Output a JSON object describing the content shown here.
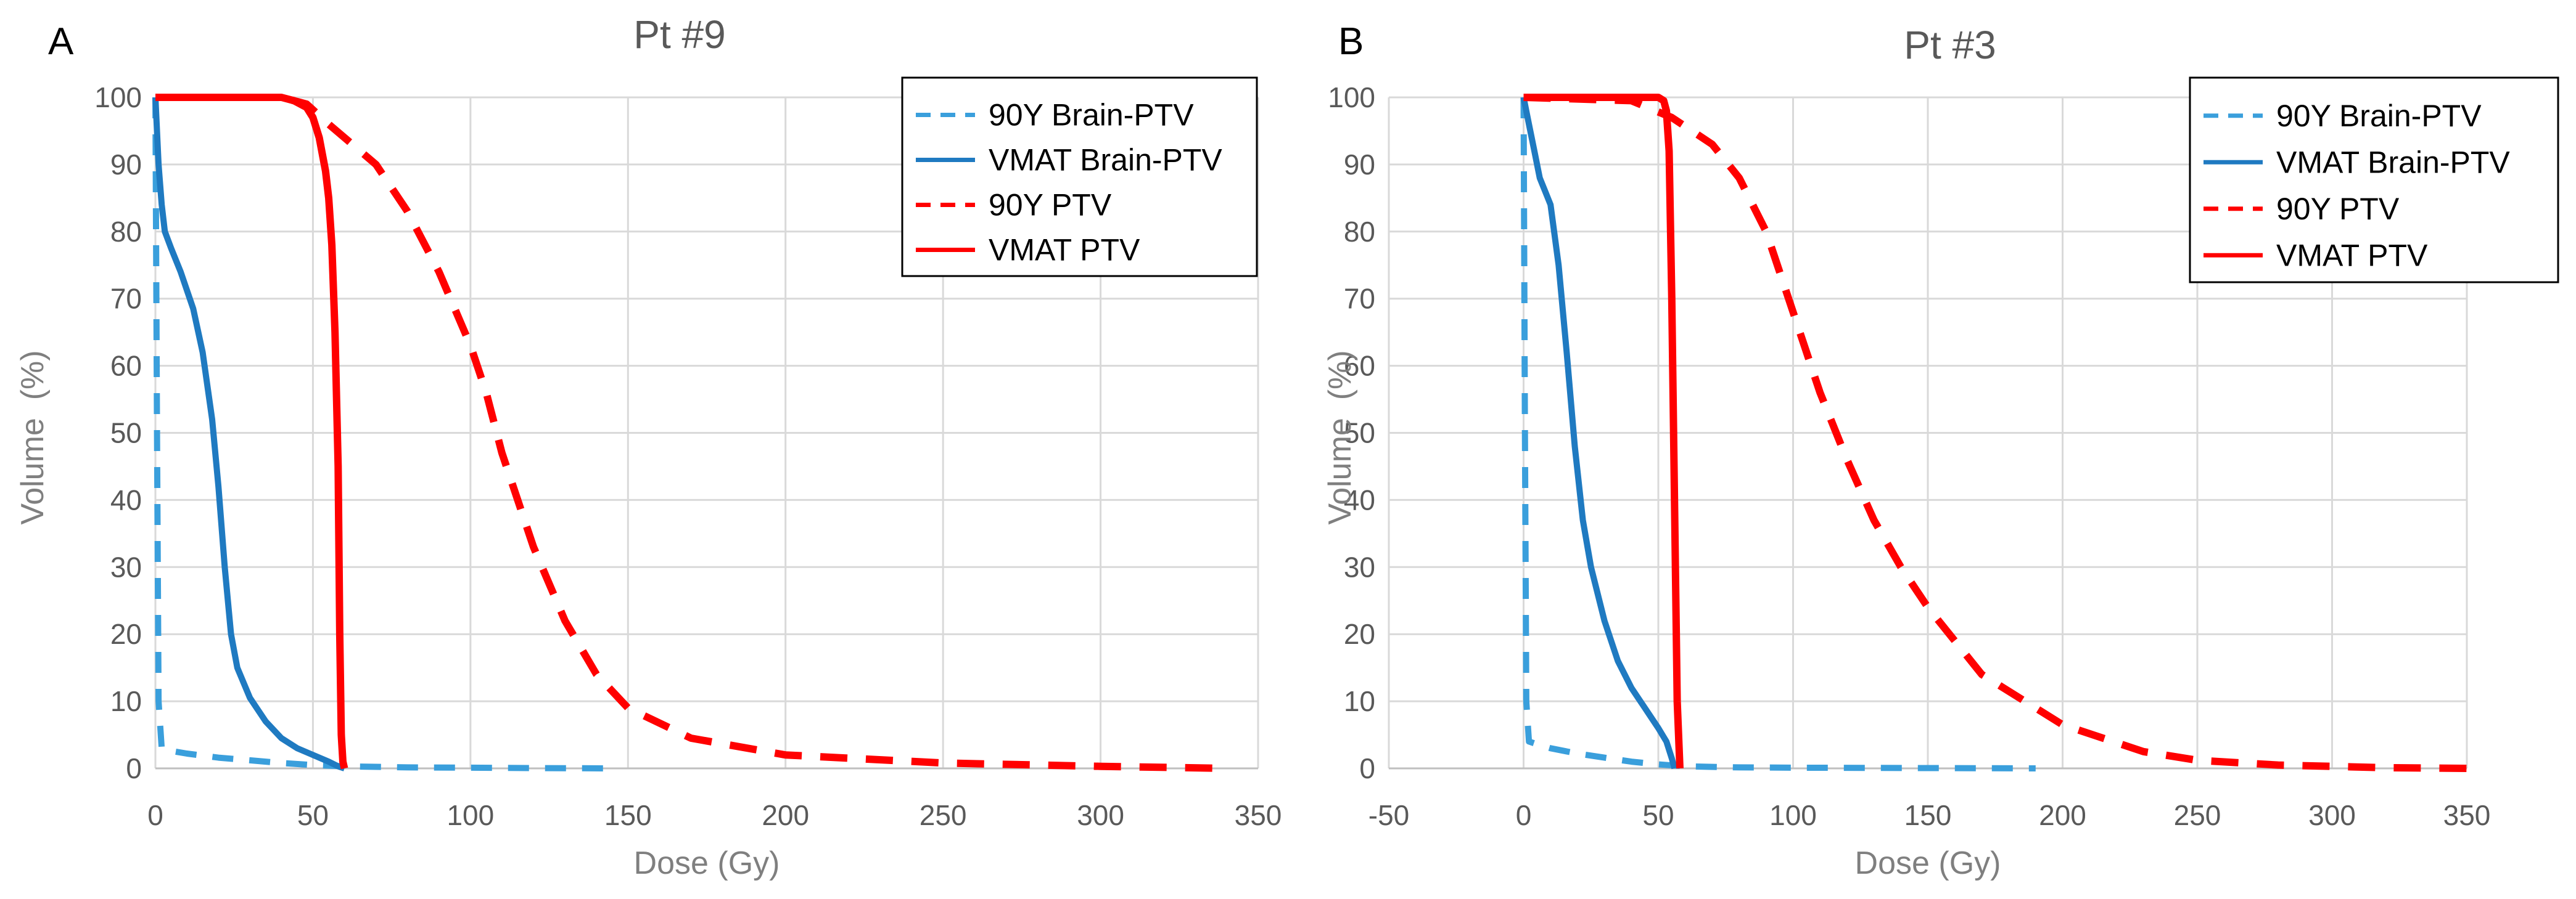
{
  "chart_data": [
    {
      "type": "line",
      "panel_label": "A",
      "title": "Pt #9",
      "xlabel": "Dose (Gy)",
      "ylabel": "Volume  (%)",
      "xlim": [
        0,
        350
      ],
      "ylim": [
        0,
        100
      ],
      "x_ticks": [
        0,
        50,
        100,
        150,
        200,
        250,
        300,
        350
      ],
      "y_ticks": [
        0,
        10,
        20,
        30,
        40,
        50,
        60,
        70,
        80,
        90,
        100
      ],
      "grid": true,
      "legend_position": "top-right",
      "series": [
        {
          "name": "90Y Brain-PTV",
          "color": "#3a9fdc",
          "dash": "dashed",
          "x": [
            0,
            0.5,
            1,
            2,
            5,
            10,
            20,
            30,
            40,
            50,
            60,
            80,
            100,
            120,
            145
          ],
          "y": [
            100,
            50,
            10,
            3,
            2.6,
            2.2,
            1.6,
            1.2,
            0.8,
            0.5,
            0.3,
            0.15,
            0.1,
            0.05,
            0
          ]
        },
        {
          "name": "VMAT Brain-PTV",
          "color": "#1f7ac1",
          "dash": "solid",
          "x": [
            0,
            1,
            2,
            3,
            5,
            8,
            12,
            15,
            18,
            20,
            22,
            24,
            26,
            30,
            35,
            40,
            45,
            50,
            55,
            58,
            60
          ],
          "y": [
            100,
            90,
            84,
            80,
            77.5,
            74,
            68.5,
            62,
            52,
            42,
            30,
            20,
            15,
            10.5,
            7,
            4.5,
            3,
            2,
            1,
            0.3,
            0
          ]
        },
        {
          "name": "90Y PTV",
          "color": "#ff0000",
          "dash": "dashed",
          "x": [
            0,
            20,
            40,
            48,
            55,
            70,
            80,
            90,
            100,
            105,
            110,
            120,
            130,
            140,
            150,
            170,
            200,
            250,
            300,
            340
          ],
          "y": [
            100,
            100,
            100,
            99,
            96,
            90,
            83,
            74,
            63,
            56,
            47,
            33,
            22,
            14,
            9,
            4.5,
            2,
            0.8,
            0.3,
            0
          ]
        },
        {
          "name": "VMAT PTV",
          "color": "#ff0000",
          "dash": "solid",
          "x": [
            0,
            40,
            44,
            48,
            50,
            52,
            54,
            55,
            56,
            57,
            58,
            58.5,
            59,
            59.5,
            60
          ],
          "y": [
            100,
            100,
            99.5,
            98.5,
            97,
            94,
            89,
            85,
            78,
            65,
            45,
            20,
            5,
            1,
            0
          ]
        }
      ]
    },
    {
      "type": "line",
      "panel_label": "B",
      "title": "Pt #3",
      "xlabel": "Dose (Gy)",
      "ylabel": "Volume  (%)",
      "xlim": [
        -50,
        350
      ],
      "ylim": [
        0,
        100
      ],
      "x_ticks": [
        -50,
        0,
        50,
        100,
        150,
        200,
        250,
        300,
        350
      ],
      "y_ticks": [
        0,
        10,
        20,
        30,
        40,
        50,
        60,
        70,
        80,
        90,
        100
      ],
      "grid": true,
      "legend_position": "top-right",
      "series": [
        {
          "name": "90Y Brain-PTV",
          "color": "#3a9fdc",
          "dash": "dashed",
          "x": [
            0,
            0.5,
            1,
            2,
            5,
            10,
            20,
            30,
            40,
            50,
            60,
            80,
            100,
            150,
            190
          ],
          "y": [
            100,
            50,
            10,
            4,
            3.6,
            3,
            2.2,
            1.6,
            1,
            0.6,
            0.3,
            0.15,
            0.1,
            0.05,
            0
          ]
        },
        {
          "name": "VMAT Brain-PTV",
          "color": "#1f7ac1",
          "dash": "solid",
          "x": [
            0,
            2,
            4,
            6,
            8,
            10,
            13,
            16,
            19,
            22,
            25,
            30,
            35,
            40,
            45,
            50,
            53,
            55,
            56
          ],
          "y": [
            100,
            96,
            92,
            88,
            86,
            84,
            75,
            62,
            48,
            37,
            30,
            22,
            16,
            12,
            9,
            6,
            4,
            1.5,
            0
          ]
        },
        {
          "name": "90Y PTV",
          "color": "#ff0000",
          "dash": "dashed",
          "x": [
            0,
            40,
            55,
            70,
            80,
            90,
            100,
            110,
            120,
            130,
            140,
            150,
            170,
            200,
            230,
            250,
            280,
            320,
            350
          ],
          "y": [
            100,
            99.5,
            97,
            93,
            88,
            80,
            68,
            56,
            46,
            37,
            30,
            24,
            14,
            6.5,
            2.5,
            1.2,
            0.5,
            0.1,
            0
          ]
        },
        {
          "name": "VMAT PTV",
          "color": "#ff0000",
          "dash": "solid",
          "x": [
            0,
            50,
            52,
            53,
            54,
            55,
            56,
            57,
            58
          ],
          "y": [
            100,
            100,
            99.5,
            98,
            92,
            70,
            40,
            10,
            0
          ]
        }
      ]
    }
  ]
}
